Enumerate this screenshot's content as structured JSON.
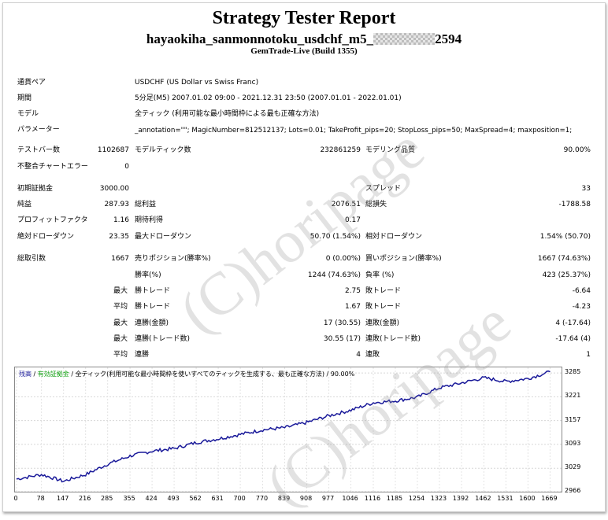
{
  "header": {
    "title": "Strategy Tester Report",
    "name_prefix": "hayaokiha_sanmonnotoku_usdchf_m5_",
    "name_suffix": "2594",
    "build": "GemTrade-Live (Build 1355)"
  },
  "info": {
    "pair_label": "通貨ペア",
    "pair_value": "USDCHF (US Dollar vs Swiss Franc)",
    "period_label": "期間",
    "period_value": "5分足(M5) 2007.01.02 09:00 - 2021.12.31 23:50 (2007.01.01 - 2022.01.01)",
    "model_label": "モデル",
    "model_value": "全ティック (利用可能な最小時間枠による最も正確な方法)",
    "params_label": "パラメーター",
    "params_value": "_annotation=\"\"; MagicNumber=812512137; Lots=0.01; TakeProfit_pips=20; StopLoss_pips=50; MaxSpread=4; maxposition=1;"
  },
  "stats": {
    "bars_label": "テストバー数",
    "bars": "1102687",
    "ticks_label": "モデルティック数",
    "ticks": "232861259",
    "quality_label": "モデリング品質",
    "quality": "90.00%",
    "mismatch_label": "不整合チャートエラー",
    "mismatch": "0",
    "deposit_label": "初期証拠金",
    "deposit": "3000.00",
    "spread_label": "スプレッド",
    "spread": "33",
    "net_label": "純益",
    "net": "287.93",
    "gross_profit_label": "総利益",
    "gross_profit": "2076.51",
    "gross_loss_label": "総損失",
    "gross_loss": "-1788.58",
    "pf_label": "プロフィットファクタ",
    "pf": "1.16",
    "expected_label": "期待利得",
    "expected": "0.17",
    "abs_dd_label": "絶対ドローダウン",
    "abs_dd": "23.35",
    "max_dd_label": "最大ドローダウン",
    "max_dd": "50.70 (1.54%)",
    "rel_dd_label": "相対ドローダウン",
    "rel_dd": "1.54% (50.70)",
    "trades_label": "総取引数",
    "trades": "1667",
    "short_label": "売りポジション(勝率%)",
    "short": "0 (0.00%)",
    "long_label": "買いポジション(勝率%)",
    "long": "1667 (74.63%)",
    "win_label": "勝率(%)",
    "win": "1244 (74.63%)",
    "loss_label": "負率 (%)",
    "loss": "423 (25.37%)",
    "max_word": "最大",
    "avg_word": "平均",
    "largest_win_label": "勝トレード",
    "largest_win": "2.75",
    "largest_loss_label": "敗トレード",
    "largest_loss": "-6.64",
    "avg_win_label": "勝トレード",
    "avg_win": "1.67",
    "avg_loss_label": "敗トレード",
    "avg_loss": "-4.23",
    "mcw_label": "連勝(金額)",
    "mcw": "17 (30.55)",
    "mcl_label": "連敗(金額)",
    "mcl": "4 (-17.64)",
    "mcp_label": "連勝(トレード数)",
    "mcp": "30.55 (17)",
    "mcll_label": "連敗(トレード数)",
    "mcll": "-17.64 (4)",
    "acw_label": "連勝",
    "acw": "4",
    "acl_label": "連敗",
    "acl": "1"
  },
  "graph_legend": {
    "balance": "残高",
    "equity": "有効証拠金",
    "sep1": " / ",
    "model": "全ティック(利用可能な最小時間枠を使いすべてのティックを生成する、最も正確な方法)",
    "sep2": " / ",
    "quality": "90.00%"
  },
  "watermark": "(C)horipage",
  "colors": {
    "balance": "#1a1a9a",
    "legend_balance": "#1a1a9a",
    "legend_equity": "#11a011"
  },
  "chart_data": {
    "type": "line",
    "series": [
      {
        "name": "残高",
        "x": [
          0,
          78,
          147,
          216,
          285,
          355,
          424,
          493,
          562,
          631,
          700,
          770,
          839,
          908,
          977,
          1046,
          1116,
          1185,
          1254,
          1323,
          1392,
          1462,
          1531,
          1600,
          1669
        ],
        "values": [
          3000,
          3012,
          2994,
          3012,
          3040,
          3062,
          3075,
          3082,
          3098,
          3108,
          3120,
          3132,
          3138,
          3152,
          3170,
          3185,
          3205,
          3210,
          3220,
          3245,
          3258,
          3272,
          3262,
          3270,
          3288
        ]
      }
    ],
    "x_ticks": [
      "0",
      "78",
      "147",
      "216",
      "285",
      "355",
      "424",
      "493",
      "562",
      "631",
      "700",
      "770",
      "839",
      "908",
      "977",
      "1046",
      "1116",
      "1185",
      "1254",
      "1323",
      "1392",
      "1462",
      "1531",
      "1600",
      "1669"
    ],
    "y_ticks": [
      "3285",
      "3221",
      "3157",
      "3093",
      "3029",
      "2966"
    ],
    "ylim": [
      2966,
      3300
    ],
    "xlim": [
      0,
      1700
    ],
    "grid": true
  }
}
